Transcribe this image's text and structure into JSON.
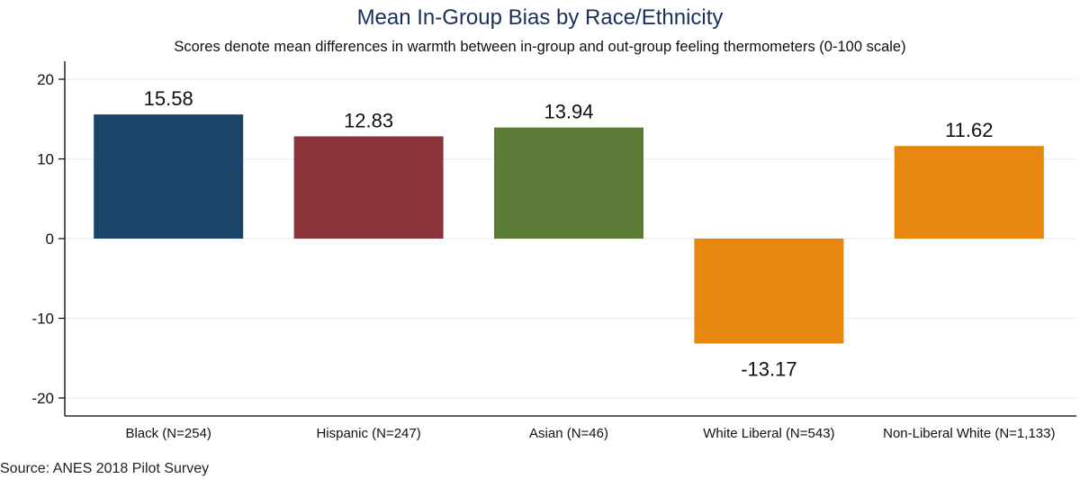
{
  "chart_data": {
    "type": "bar",
    "title": "Mean In-Group Bias by Race/Ethnicity",
    "subtitle": "Scores denote mean differences in warmth between in-group and out-group feeling thermometers (0-100 scale)",
    "source": "Source: ANES 2018 Pilot Survey",
    "categories": [
      "Black (N=254)",
      "Hispanic (N=247)",
      "Asian (N=46)",
      "White Liberal (N=543)",
      "Non-Liberal White (N=1,133)"
    ],
    "values": [
      15.58,
      12.83,
      13.94,
      -13.17,
      11.62
    ],
    "value_labels": [
      "15.58",
      "12.83",
      "13.94",
      "-13.17",
      "11.62"
    ],
    "colors": [
      "#1b4469",
      "#8c343c",
      "#5a7a35",
      "#e8870f",
      "#e8870f"
    ],
    "ylim": [
      -22,
      22
    ],
    "yticks": [
      20,
      10,
      0,
      -10,
      -20
    ],
    "ytick_labels": [
      "20",
      "10",
      "0",
      "-10",
      "-20"
    ],
    "grid": true,
    "gridline_color": "#eaeff2",
    "axis_color": "#000000"
  }
}
